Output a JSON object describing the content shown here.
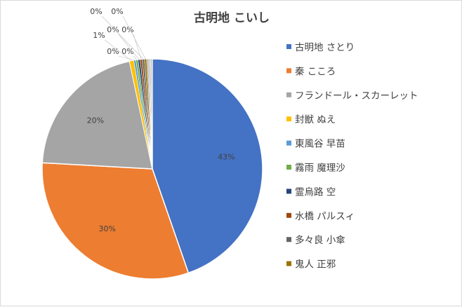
{
  "chart_data": {
    "type": "pie",
    "title": "古明地 こいし",
    "legend_position": "right",
    "slices": [
      {
        "name": "古明地 さとり",
        "value": 43,
        "label": "43%",
        "color": "#4472C4"
      },
      {
        "name": "秦 こころ",
        "value": 30,
        "label": "30%",
        "color": "#ED7D31"
      },
      {
        "name": "フランドール・スカーレット",
        "value": 20,
        "label": "20%",
        "color": "#A5A5A5"
      },
      {
        "name": "封獣 ぬえ",
        "value": 0.6,
        "label": "1%",
        "color": "#FFC000"
      },
      {
        "name": "東風谷 早苗",
        "value": 0.3,
        "label": "0%",
        "color": "#5B9BD5"
      },
      {
        "name": "霧雨 魔理沙",
        "value": 0.3,
        "label": "0%",
        "color": "#70AD47"
      },
      {
        "name": "霊烏路 空",
        "value": 0.3,
        "label": "0%",
        "color": "#264478"
      },
      {
        "name": "水橋 パルスィ",
        "value": 0.3,
        "label": "0%",
        "color": "#9E480E"
      },
      {
        "name": "多々良 小傘",
        "value": 0.3,
        "label": "0%",
        "color": "#636363"
      },
      {
        "name": "鬼人 正邪",
        "value": 0.3,
        "label": "0%",
        "color": "#997300"
      },
      {
        "name": "",
        "value": 0.2,
        "label": "0%",
        "color": "#A0A0A0"
      },
      {
        "name": "",
        "value": 0.2,
        "label": "0%",
        "color": "#B4B4B4"
      },
      {
        "name": "",
        "value": 0.2,
        "label": "0%",
        "color": "#C8C8C8"
      },
      {
        "name": "",
        "value": 0.2,
        "label": "0%",
        "color": "#BEBEBE"
      }
    ]
  }
}
